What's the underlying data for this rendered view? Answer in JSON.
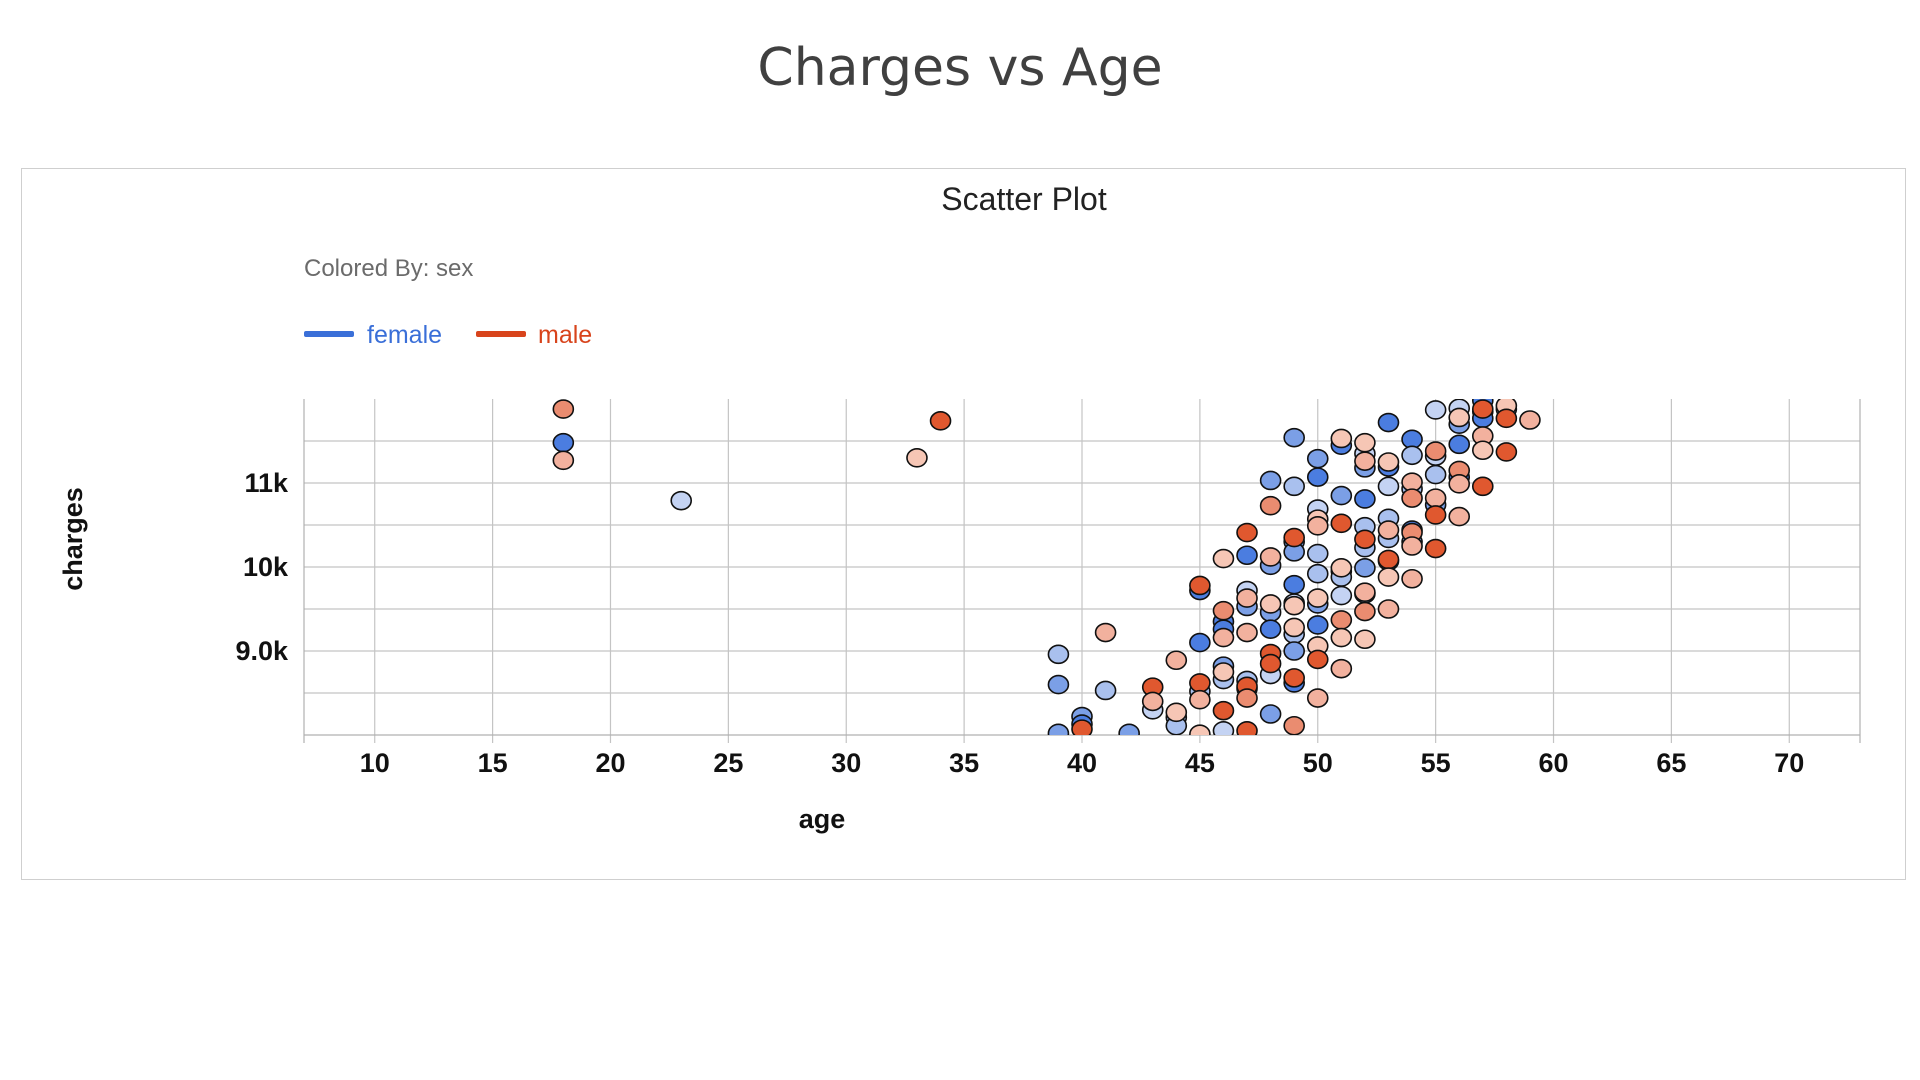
{
  "slide": {
    "title": "Charges vs Age"
  },
  "colors": {
    "female": "#3a6fd8",
    "male": "#d8441c"
  },
  "chart_data": {
    "type": "scatter",
    "title": "Scatter Plot",
    "color_label": "Colored By: sex",
    "xlabel": "age",
    "ylabel": "charges",
    "xlim": [
      7,
      73
    ],
    "ylim": [
      8000,
      12000
    ],
    "x_ticks": [
      "10",
      "15",
      "20",
      "25",
      "30",
      "35",
      "40",
      "45",
      "50",
      "55",
      "60",
      "65",
      "70"
    ],
    "x_tick_values": [
      10,
      15,
      20,
      25,
      30,
      35,
      40,
      45,
      50,
      55,
      60,
      65,
      70
    ],
    "y_ticks": [
      {
        "label": "9.0k",
        "value": 9000
      },
      {
        "label": "10k",
        "value": 10000
      },
      {
        "label": "11k",
        "value": 11000
      }
    ],
    "grid": true,
    "legend_position": "top-left",
    "series": [
      {
        "name": "female",
        "points": [
          [
            18,
            11480
          ],
          [
            23,
            10790
          ],
          [
            39,
            8960
          ],
          [
            39,
            8600
          ],
          [
            39,
            8020
          ],
          [
            40,
            8220
          ],
          [
            40,
            8130
          ],
          [
            41,
            8530
          ],
          [
            42,
            8020
          ],
          [
            43,
            8300
          ],
          [
            44,
            8210
          ],
          [
            44,
            8110
          ],
          [
            45,
            9100
          ],
          [
            45,
            9720
          ],
          [
            45,
            8520
          ],
          [
            46,
            9350
          ],
          [
            46,
            9260
          ],
          [
            46,
            8820
          ],
          [
            46,
            8660
          ],
          [
            46,
            8050
          ],
          [
            47,
            9720
          ],
          [
            47,
            9530
          ],
          [
            47,
            8650
          ],
          [
            47,
            8550
          ],
          [
            47,
            10140
          ],
          [
            48,
            11030
          ],
          [
            48,
            10020
          ],
          [
            48,
            9460
          ],
          [
            48,
            9260
          ],
          [
            48,
            8720
          ],
          [
            48,
            8250
          ],
          [
            49,
            11540
          ],
          [
            49,
            10960
          ],
          [
            49,
            10300
          ],
          [
            49,
            10180
          ],
          [
            49,
            9790
          ],
          [
            49,
            9570
          ],
          [
            49,
            9200
          ],
          [
            49,
            9000
          ],
          [
            49,
            8620
          ],
          [
            50,
            11290
          ],
          [
            50,
            11070
          ],
          [
            50,
            10690
          ],
          [
            50,
            10160
          ],
          [
            50,
            9920
          ],
          [
            50,
            9560
          ],
          [
            50,
            9310
          ],
          [
            51,
            11450
          ],
          [
            51,
            10850
          ],
          [
            51,
            9950
          ],
          [
            51,
            9660
          ],
          [
            51,
            9880
          ],
          [
            52,
            11350
          ],
          [
            52,
            11180
          ],
          [
            52,
            10810
          ],
          [
            52,
            10480
          ],
          [
            52,
            10230
          ],
          [
            52,
            9990
          ],
          [
            52,
            9680
          ],
          [
            53,
            11720
          ],
          [
            53,
            11190
          ],
          [
            53,
            10960
          ],
          [
            53,
            10580
          ],
          [
            53,
            10340
          ],
          [
            53,
            10070
          ],
          [
            54,
            11520
          ],
          [
            54,
            11330
          ],
          [
            54,
            10930
          ],
          [
            54,
            10440
          ],
          [
            54,
            10300
          ],
          [
            55,
            11870
          ],
          [
            55,
            11320
          ],
          [
            55,
            11100
          ],
          [
            55,
            10740
          ],
          [
            56,
            11890
          ],
          [
            56,
            11700
          ],
          [
            56,
            11460
          ],
          [
            56,
            11070
          ],
          [
            57,
            11980
          ],
          [
            57,
            11850
          ],
          [
            57,
            11770
          ],
          [
            58,
            11880
          ]
        ]
      },
      {
        "name": "male",
        "points": [
          [
            18,
            11880
          ],
          [
            18,
            11270
          ],
          [
            33,
            11300
          ],
          [
            34,
            11740
          ],
          [
            40,
            8070
          ],
          [
            41,
            9220
          ],
          [
            43,
            8570
          ],
          [
            43,
            8400
          ],
          [
            44,
            8890
          ],
          [
            44,
            8270
          ],
          [
            45,
            9780
          ],
          [
            45,
            8620
          ],
          [
            45,
            8420
          ],
          [
            45,
            8010
          ],
          [
            46,
            10100
          ],
          [
            46,
            9480
          ],
          [
            46,
            9160
          ],
          [
            46,
            8750
          ],
          [
            46,
            8290
          ],
          [
            47,
            10410
          ],
          [
            47,
            9630
          ],
          [
            47,
            9220
          ],
          [
            47,
            8580
          ],
          [
            47,
            8440
          ],
          [
            47,
            8050
          ],
          [
            48,
            10730
          ],
          [
            48,
            10120
          ],
          [
            48,
            9560
          ],
          [
            48,
            8970
          ],
          [
            48,
            8850
          ],
          [
            49,
            10350
          ],
          [
            49,
            9540
          ],
          [
            49,
            9280
          ],
          [
            49,
            8680
          ],
          [
            49,
            8110
          ],
          [
            50,
            10570
          ],
          [
            50,
            10490
          ],
          [
            50,
            9630
          ],
          [
            50,
            9060
          ],
          [
            50,
            8900
          ],
          [
            50,
            8440
          ],
          [
            51,
            11530
          ],
          [
            51,
            10520
          ],
          [
            51,
            9990
          ],
          [
            51,
            9370
          ],
          [
            51,
            9160
          ],
          [
            51,
            8790
          ],
          [
            52,
            11480
          ],
          [
            52,
            11260
          ],
          [
            52,
            10330
          ],
          [
            52,
            9700
          ],
          [
            52,
            9470
          ],
          [
            52,
            9140
          ],
          [
            53,
            11250
          ],
          [
            53,
            10440
          ],
          [
            53,
            10090
          ],
          [
            53,
            9880
          ],
          [
            53,
            9500
          ],
          [
            54,
            11010
          ],
          [
            54,
            10820
          ],
          [
            54,
            10410
          ],
          [
            54,
            10250
          ],
          [
            54,
            9860
          ],
          [
            55,
            11380
          ],
          [
            55,
            10820
          ],
          [
            55,
            10620
          ],
          [
            55,
            10220
          ],
          [
            56,
            11780
          ],
          [
            56,
            11150
          ],
          [
            56,
            10990
          ],
          [
            56,
            10600
          ],
          [
            57,
            11880
          ],
          [
            57,
            11560
          ],
          [
            57,
            11390
          ],
          [
            57,
            10960
          ],
          [
            58,
            11920
          ],
          [
            58,
            11770
          ],
          [
            58,
            11370
          ],
          [
            59,
            11750
          ]
        ]
      }
    ]
  }
}
